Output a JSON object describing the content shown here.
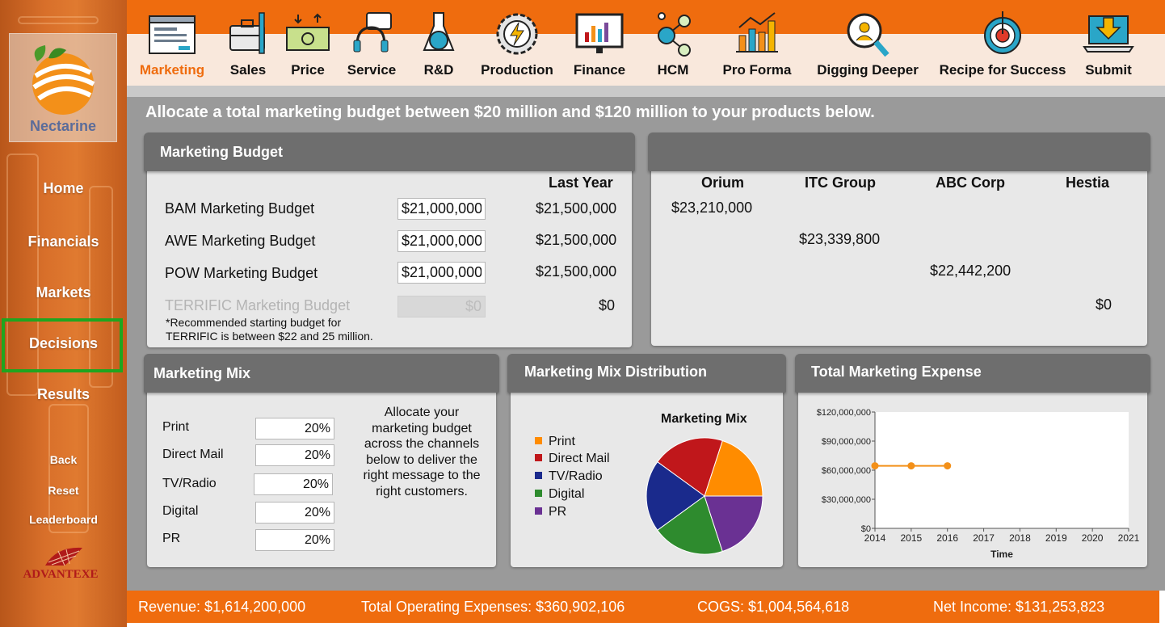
{
  "sidebar": {
    "company": "Nectarine",
    "items": [
      {
        "label": "Home"
      },
      {
        "label": "Financials"
      },
      {
        "label": "Markets"
      },
      {
        "label": "Decisions"
      },
      {
        "label": "Results"
      }
    ],
    "small_items": [
      {
        "label": "Back"
      },
      {
        "label": "Reset"
      },
      {
        "label": "Leaderboard"
      }
    ],
    "brand": "ADVANTEXE",
    "active": "Decisions",
    "highlight_color": "#1fa51f"
  },
  "topnav": {
    "items": [
      {
        "label": "Marketing",
        "icon": "browser-window-icon"
      },
      {
        "label": "Sales",
        "icon": "briefcase-icon"
      },
      {
        "label": "Price",
        "icon": "money-bill-icon"
      },
      {
        "label": "Service",
        "icon": "headset-chat-icon"
      },
      {
        "label": "R&D",
        "icon": "flask-globe-icon"
      },
      {
        "label": "Production",
        "icon": "gear-lightning-icon"
      },
      {
        "label": "Finance",
        "icon": "monitor-chart-icon"
      },
      {
        "label": "HCM",
        "icon": "network-nodes-icon"
      },
      {
        "label": "Pro Forma",
        "icon": "bar-chart-trend-icon"
      },
      {
        "label": "Digging Deeper",
        "icon": "magnifier-person-icon"
      },
      {
        "label": "Recipe for Success",
        "icon": "target-icon"
      },
      {
        "label": "Submit",
        "icon": "laptop-download-icon"
      }
    ],
    "active": "Marketing",
    "accent": "#ef6c0e"
  },
  "instruction": "Allocate a total marketing budget between $20 million and $120 million to your products below.",
  "budget_panel": {
    "title": "Marketing Budget",
    "last_year_header": "Last Year",
    "rows": [
      {
        "label": "BAM Marketing Budget",
        "value": "$21,000,000",
        "last_year": "$21,500,000"
      },
      {
        "label": "AWE Marketing Budget",
        "value": "$21,000,000",
        "last_year": "$21,500,000"
      },
      {
        "label": "POW Marketing Budget",
        "value": "$21,000,000",
        "last_year": "$21,500,000"
      },
      {
        "label": "TERRIFIC Marketing Budget",
        "value": "$0",
        "last_year": "$0",
        "disabled": true
      }
    ],
    "note_line1": "*Recommended starting budget for",
    "note_line2": "TERRIFIC is between $22 and 25 million."
  },
  "competitor_panel": {
    "headers": [
      "Orium",
      "ITC Group",
      "ABC Corp",
      "Hestia"
    ],
    "values": [
      "$23,210,000",
      "$23,339,800",
      "$22,442,200",
      "$0"
    ]
  },
  "mix_panel": {
    "title": "Marketing Mix",
    "rows": [
      {
        "label": "Print",
        "value": "20%"
      },
      {
        "label": "Direct Mail",
        "value": "20%"
      },
      {
        "label": "TV/Radio",
        "value": "20%"
      },
      {
        "label": "Digital",
        "value": "20%"
      },
      {
        "label": "PR",
        "value": "20%"
      }
    ],
    "help_lines": [
      "Allocate your",
      "marketing budget",
      "across the channels",
      "below to deliver the",
      "right message to the",
      "right customers."
    ]
  },
  "distribution_panel": {
    "title": "Marketing Mix Distribution",
    "chart_title": "Marketing Mix",
    "legend": [
      {
        "label": "Print",
        "color": "#ff8c00"
      },
      {
        "label": "Direct Mail",
        "color": "#c0171b"
      },
      {
        "label": "TV/Radio",
        "color": "#1a2a8c"
      },
      {
        "label": "Digital",
        "color": "#2e8b2e"
      },
      {
        "label": "PR",
        "color": "#6a3193"
      }
    ]
  },
  "expense_panel": {
    "title": "Total Marketing Expense",
    "xlabel": "Time",
    "line_color": "#f39019"
  },
  "chart_data": [
    {
      "type": "pie",
      "title": "Marketing Mix",
      "categories": [
        "Print",
        "Direct Mail",
        "TV/Radio",
        "Digital",
        "PR"
      ],
      "values": [
        20,
        20,
        20,
        20,
        20
      ]
    },
    {
      "type": "line",
      "title": "",
      "xlabel": "Time",
      "ylabel": "",
      "x": [
        2014,
        2015,
        2016
      ],
      "series": [
        {
          "values": [
            64500000,
            64500000,
            64500000
          ]
        }
      ],
      "xlim": [
        2014,
        2021
      ],
      "ylim": [
        0,
        120000000
      ],
      "xticks": [
        "2014",
        "2015",
        "2016",
        "2017",
        "2018",
        "2019",
        "2020",
        "2021"
      ],
      "yticks": [
        "$0",
        "$30,000,000",
        "$60,000,000",
        "$90,000,000",
        "$120,000,000"
      ]
    }
  ],
  "bottom_bar": {
    "revenue": "Revenue: $1,614,200,000",
    "opex": "Total Operating Expenses:  $360,902,106",
    "cogs": "COGS:  $1,004,564,618",
    "net_income": "Net Income:  $131,253,823"
  }
}
